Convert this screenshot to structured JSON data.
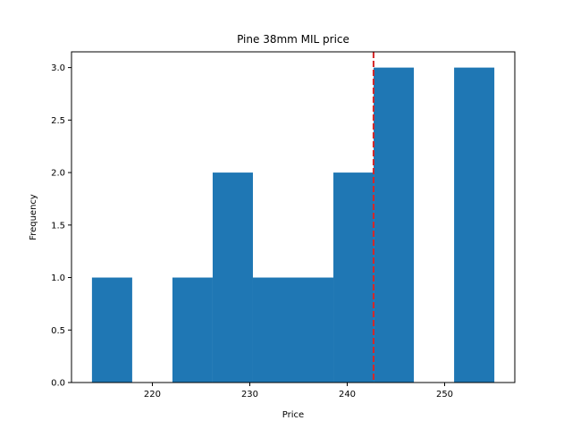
{
  "chart_data": {
    "type": "bar",
    "title": "Pine 38mm MIL price",
    "xlabel": "Price",
    "ylabel": "Frequency",
    "bins": [
      {
        "x0": 213.8,
        "x1": 217.93,
        "count": 1
      },
      {
        "x0": 217.93,
        "x1": 222.06,
        "count": 0
      },
      {
        "x0": 222.06,
        "x1": 226.19,
        "count": 1
      },
      {
        "x0": 226.19,
        "x1": 230.32,
        "count": 2
      },
      {
        "x0": 230.32,
        "x1": 234.45,
        "count": 1
      },
      {
        "x0": 234.45,
        "x1": 238.58,
        "count": 1
      },
      {
        "x0": 238.58,
        "x1": 242.71,
        "count": 2
      },
      {
        "x0": 242.71,
        "x1": 246.84,
        "count": 3
      },
      {
        "x0": 246.84,
        "x1": 250.97,
        "count": 0
      },
      {
        "x0": 250.97,
        "x1": 255.1,
        "count": 3
      }
    ],
    "xlim": [
      211.7,
      257.2
    ],
    "ylim": [
      0,
      3.15
    ],
    "xticks": [
      220,
      230,
      240,
      250
    ],
    "yticks": [
      0.0,
      0.5,
      1.0,
      1.5,
      2.0,
      2.5,
      3.0
    ],
    "xtick_labels": [
      "220",
      "230",
      "240",
      "250"
    ],
    "ytick_labels": [
      "0.0",
      "0.5",
      "1.0",
      "1.5",
      "2.0",
      "2.5",
      "3.0"
    ],
    "reference_line": {
      "x": 242.7,
      "color": "#d62728",
      "style": "dashed"
    },
    "bar_color": "#1f77b4",
    "grid": false
  }
}
